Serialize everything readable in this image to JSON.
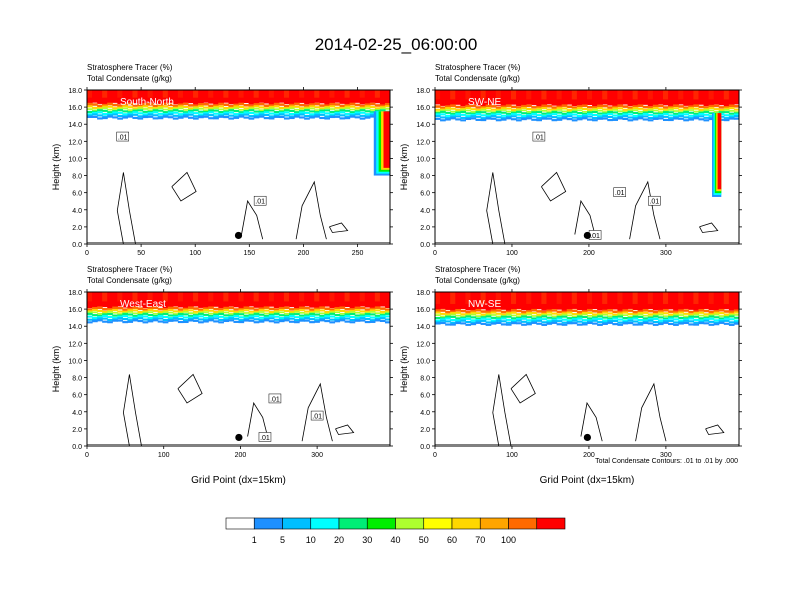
{
  "figure": {
    "title": "2014-02-25_06:00:00",
    "subtitle_line1": "Stratosphere Tracer   (%)",
    "subtitle_line2": "Total Condensate   (g/kg)",
    "footnote": "Total Condensate Contours: .01 to .01 by .000"
  },
  "colorbar": {
    "levels": [
      "1",
      "5",
      "10",
      "20",
      "30",
      "40",
      "50",
      "60",
      "70",
      "100"
    ],
    "colors": [
      "#ffffff",
      "#1e90ff",
      "#00bfff",
      "#00ffff",
      "#00ee76",
      "#00ee00",
      "#adff2f",
      "#ffff00",
      "#ffd700",
      "#ffa500",
      "#ff6a00",
      "#ff0000"
    ]
  },
  "chart_data": [
    {
      "type": "heatmap",
      "panel_label": "South-North",
      "xlabel": "",
      "ylabel": "Height (km)",
      "xlim": [
        0,
        280
      ],
      "ylim": [
        0,
        18
      ],
      "xticks": [
        "0",
        "50",
        "100",
        "150",
        "200",
        "250"
      ],
      "yticks": [
        "0.0",
        "2.0",
        "4.0",
        "6.0",
        "8.0",
        "10.0",
        "12.0",
        "14.0",
        "16.0",
        "18.0"
      ],
      "tropopause_km": 15.5,
      "intrusion": {
        "x_start": 265,
        "x_end": 280,
        "bottom_km": 8.0
      },
      "contour_labels": [
        {
          "x": 33,
          "y": 12.5,
          "text": ".01"
        },
        {
          "x": 160,
          "y": 5.0,
          "text": ".01"
        }
      ],
      "marker": {
        "x": 140,
        "y": 1.0
      }
    },
    {
      "type": "heatmap",
      "panel_label": "SW-NE",
      "xlabel": "",
      "ylabel": "Height (km)",
      "xlim": [
        0,
        395
      ],
      "ylim": [
        0,
        18
      ],
      "xticks": [
        "0",
        "100",
        "200",
        "300"
      ],
      "yticks": [
        "0.0",
        "2.0",
        "4.0",
        "6.0",
        "8.0",
        "10.0",
        "12.0",
        "14.0",
        "16.0",
        "18.0"
      ],
      "tropopause_km": 15.3,
      "intrusion": {
        "x_start": 360,
        "x_end": 372,
        "bottom_km": 5.5
      },
      "contour_labels": [
        {
          "x": 135,
          "y": 12.5,
          "text": ".01"
        },
        {
          "x": 240,
          "y": 6.0,
          "text": ".01"
        },
        {
          "x": 285,
          "y": 5.0,
          "text": ".01"
        },
        {
          "x": 208,
          "y": 1.0,
          "text": ".01"
        }
      ],
      "marker": {
        "x": 198,
        "y": 1.0
      }
    },
    {
      "type": "heatmap",
      "panel_label": "West-East",
      "xlabel": "Grid Point (dx=15km)",
      "ylabel": "Height (km)",
      "xlim": [
        0,
        395
      ],
      "ylim": [
        0,
        18
      ],
      "xticks": [
        "0",
        "100",
        "200",
        "300"
      ],
      "yticks": [
        "0.0",
        "2.0",
        "4.0",
        "6.0",
        "8.0",
        "10.0",
        "12.0",
        "14.0",
        "16.0",
        "18.0"
      ],
      "tropopause_km": 15.3,
      "contour_labels": [
        {
          "x": 245,
          "y": 5.5,
          "text": ".01"
        },
        {
          "x": 300,
          "y": 3.5,
          "text": ".01"
        },
        {
          "x": 232,
          "y": 1.0,
          "text": ".01"
        }
      ],
      "marker": {
        "x": 198,
        "y": 1.0
      }
    },
    {
      "type": "heatmap",
      "panel_label": "NW-SE",
      "xlabel": "Grid Point (dx=15km)",
      "ylabel": "Height (km)",
      "xlim": [
        0,
        395
      ],
      "ylim": [
        0,
        18
      ],
      "xticks": [
        "0",
        "100",
        "200",
        "300"
      ],
      "yticks": [
        "0.0",
        "2.0",
        "4.0",
        "6.0",
        "8.0",
        "10.0",
        "12.0",
        "14.0",
        "16.0",
        "18.0"
      ],
      "tropopause_km": 15.0,
      "contour_labels": [],
      "marker": {
        "x": 198,
        "y": 1.0
      }
    }
  ]
}
